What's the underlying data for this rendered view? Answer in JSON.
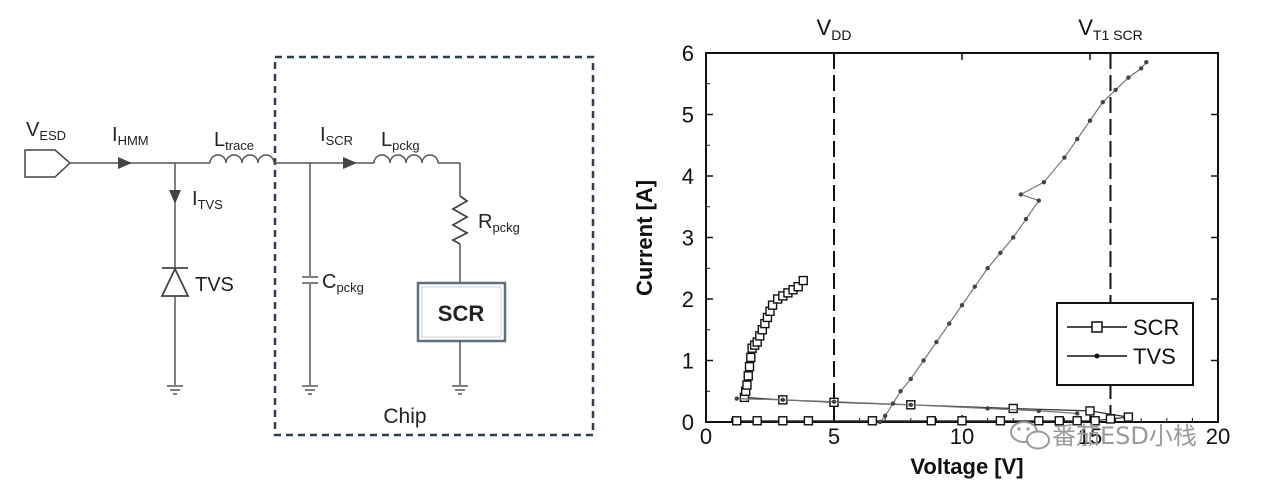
{
  "circuit": {
    "labels": {
      "v_esd": "V",
      "v_esd_sub": "ESD",
      "i_hmm": "I",
      "i_hmm_sub": "HMM",
      "l_trace": "L",
      "l_trace_sub": "trace",
      "i_tvs": "I",
      "i_tvs_sub": "TVS",
      "tvs": "TVS",
      "i_scr": "I",
      "i_scr_sub": "SCR",
      "l_pckg": "L",
      "l_pckg_sub": "pckg",
      "r_pckg": "R",
      "r_pckg_sub": "pckg",
      "c_pckg": "C",
      "c_pckg_sub": "pckg",
      "scr_box": "SCR",
      "chip": "Chip"
    }
  },
  "chart_data": {
    "type": "scatter",
    "xlabel": "Voltage [V]",
    "ylabel": "Current [A]",
    "xlim": [
      0,
      20
    ],
    "ylim": [
      0,
      6
    ],
    "xticks": [
      "0",
      "5",
      "10",
      "15",
      "20"
    ],
    "yticks": [
      "0",
      "1",
      "2",
      "3",
      "4",
      "5",
      "6"
    ],
    "vlines": [
      {
        "x": 5,
        "label": "V",
        "label_sub": "DD"
      },
      {
        "x": 15.8,
        "label": "V",
        "label_sub": "T1 SCR"
      }
    ],
    "legend": {
      "placement": "right",
      "entries": [
        "SCR",
        "TVS"
      ]
    },
    "series": [
      {
        "name": "SCR",
        "marker": "square",
        "points": [
          [
            1.2,
            0.02
          ],
          [
            2.0,
            0.02
          ],
          [
            3.0,
            0.02
          ],
          [
            4.0,
            0.02
          ],
          [
            6.5,
            0.02
          ],
          [
            8.8,
            0.02
          ],
          [
            10.0,
            0.02
          ],
          [
            11.5,
            0.02
          ],
          [
            13.0,
            0.02
          ],
          [
            13.8,
            0.02
          ],
          [
            14.5,
            0.02
          ],
          [
            15.2,
            0.02
          ],
          [
            15.8,
            0.05
          ],
          [
            16.5,
            0.08
          ],
          [
            15.0,
            0.18
          ],
          [
            12.0,
            0.22
          ],
          [
            8.0,
            0.28
          ],
          [
            5.0,
            0.32
          ],
          [
            3.0,
            0.36
          ],
          [
            1.5,
            0.4
          ],
          [
            1.55,
            0.5
          ],
          [
            1.6,
            0.6
          ],
          [
            1.65,
            0.75
          ],
          [
            1.7,
            0.9
          ],
          [
            1.75,
            1.05
          ],
          [
            1.8,
            1.2
          ],
          [
            1.9,
            1.25
          ],
          [
            2.0,
            1.3
          ],
          [
            2.1,
            1.4
          ],
          [
            2.2,
            1.5
          ],
          [
            2.3,
            1.6
          ],
          [
            2.4,
            1.7
          ],
          [
            2.5,
            1.8
          ],
          [
            2.6,
            1.9
          ],
          [
            2.8,
            2.0
          ],
          [
            3.0,
            2.05
          ],
          [
            3.2,
            2.1
          ],
          [
            3.4,
            2.15
          ],
          [
            3.6,
            2.2
          ],
          [
            3.8,
            2.3
          ]
        ]
      },
      {
        "name": "TVS",
        "marker": "dot",
        "points": [
          [
            1.2,
            0.38
          ],
          [
            3.0,
            0.36
          ],
          [
            5.0,
            0.33
          ],
          [
            8.0,
            0.28
          ],
          [
            11.0,
            0.22
          ],
          [
            13.0,
            0.18
          ],
          [
            14.5,
            0.14
          ],
          [
            6.8,
            0.0
          ],
          [
            7.0,
            0.1
          ],
          [
            7.3,
            0.3
          ],
          [
            7.6,
            0.5
          ],
          [
            8.0,
            0.7
          ],
          [
            8.5,
            1.0
          ],
          [
            9.0,
            1.3
          ],
          [
            9.5,
            1.6
          ],
          [
            10.0,
            1.9
          ],
          [
            10.5,
            2.2
          ],
          [
            11.0,
            2.5
          ],
          [
            11.5,
            2.75
          ],
          [
            12.0,
            3.0
          ],
          [
            12.5,
            3.3
          ],
          [
            13.0,
            3.6
          ],
          [
            12.3,
            3.7
          ],
          [
            13.2,
            3.9
          ],
          [
            14.0,
            4.3
          ],
          [
            14.5,
            4.6
          ],
          [
            15.0,
            4.9
          ],
          [
            15.5,
            5.2
          ],
          [
            16.0,
            5.4
          ],
          [
            16.5,
            5.6
          ],
          [
            17.0,
            5.75
          ],
          [
            17.2,
            5.85
          ]
        ]
      }
    ]
  },
  "watermark": {
    "text": "番茄ESD小栈"
  }
}
